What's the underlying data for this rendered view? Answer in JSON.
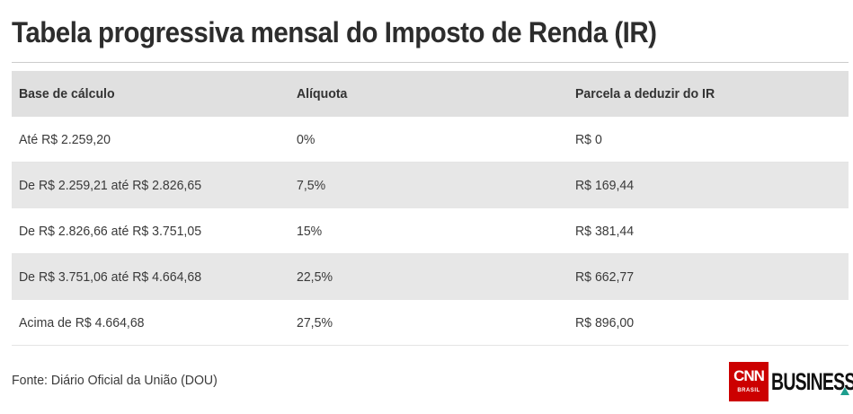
{
  "title": "Tabela progressiva mensal do Imposto de Renda (IR)",
  "table": {
    "headers": [
      "Base de cálculo",
      "Alíquota",
      "Parcela a deduzir do IR"
    ],
    "rows": [
      [
        "Até R$ 2.259,20",
        "0%",
        "R$ 0"
      ],
      [
        "De R$ 2.259,21 até R$ 2.826,65",
        "7,5%",
        "R$ 169,44"
      ],
      [
        "De R$ 2.826,66 até R$ 3.751,05",
        "15%",
        "R$ 381,44"
      ],
      [
        "De R$ 3.751,06 até R$ 4.664,68",
        "22,5%",
        "R$ 662,77"
      ],
      [
        "Acima de R$ 4.664,68",
        "27,5%",
        "R$ 896,00"
      ]
    ]
  },
  "source": "Fonte: Diário Oficial da União (DOU)",
  "logo": {
    "cnn": "CNN",
    "cnn_sub": "BRASIL",
    "business": "BUSINESS",
    "brand_color": "#cc0000",
    "accent_color": "#1d9e8e"
  }
}
